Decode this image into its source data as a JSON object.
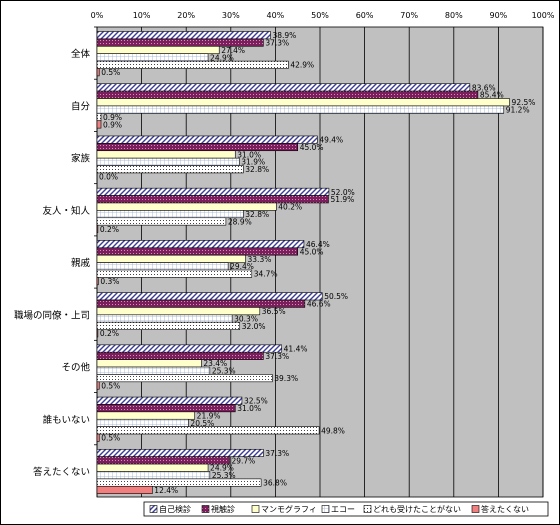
{
  "chart_data": {
    "type": "bar",
    "orientation": "horizontal",
    "xlim": [
      0,
      100
    ],
    "x_ticks": [
      "0%",
      "10%",
      "20%",
      "30%",
      "40%",
      "50%",
      "60%",
      "70%",
      "80%",
      "90%",
      "100%"
    ],
    "categories": [
      "全体",
      "自分",
      "家族",
      "友人・知人",
      "親戚",
      "職場の同僚・上司",
      "その他",
      "誰もいない",
      "答えたくない"
    ],
    "series": [
      {
        "name": "自己検診",
        "values": [
          38.9,
          83.6,
          49.4,
          52.0,
          46.4,
          50.5,
          41.4,
          32.5,
          37.3
        ],
        "labels": [
          "38.9%",
          "83.6%",
          "49.4%",
          "52.0%",
          "46.4%",
          "50.5%",
          "41.4%",
          "32.5%",
          "37.3%"
        ],
        "pattern": "diag-blue"
      },
      {
        "name": "視触診",
        "values": [
          37.3,
          85.4,
          45.0,
          51.9,
          45.0,
          46.6,
          37.3,
          31.0,
          29.7
        ],
        "labels": [
          "37.3%",
          "85.4%",
          "45.0%",
          "51.9%",
          "45.0%",
          "46.6%",
          "37.3%",
          "31.0%",
          "29.7%"
        ],
        "pattern": "dots-purple"
      },
      {
        "name": "マンモグラフィ",
        "values": [
          27.4,
          92.5,
          31.0,
          40.2,
          33.3,
          36.5,
          23.4,
          21.9,
          24.9
        ],
        "labels": [
          "27.4%",
          "92.5%",
          "31.0%",
          "40.2%",
          "33.3%",
          "36.5%",
          "23.4%",
          "21.9%",
          "24.9%"
        ],
        "pattern": "solid-yellow"
      },
      {
        "name": "エコー",
        "values": [
          24.9,
          91.2,
          31.9,
          32.8,
          29.4,
          30.3,
          25.3,
          20.5,
          25.3
        ],
        "labels": [
          "24.9%",
          "91.2%",
          "31.9%",
          "32.8%",
          "29.4%",
          "30.3%",
          "25.3%",
          "20.5%",
          "25.3%"
        ],
        "pattern": "grid-blue"
      },
      {
        "name": "どれも受けたことがない",
        "values": [
          42.9,
          0.9,
          32.8,
          28.9,
          34.7,
          32.0,
          39.3,
          49.8,
          36.8
        ],
        "labels": [
          "42.9%",
          "0.9%",
          "32.8%",
          "28.9%",
          "34.7%",
          "32.0%",
          "39.3%",
          "49.8%",
          "36.8%"
        ],
        "pattern": "dots-white"
      },
      {
        "name": "答えたくない",
        "values": [
          0.5,
          0.9,
          0.0,
          0.2,
          0.3,
          0.2,
          0.5,
          0.5,
          12.4
        ],
        "labels": [
          "0.5%",
          "0.9%",
          "0.0%",
          "0.2%",
          "0.3%",
          "0.2%",
          "0.5%",
          "0.5%",
          "12.4%"
        ],
        "pattern": "solid-pink"
      }
    ],
    "grid": true,
    "legend_position": "bottom"
  }
}
